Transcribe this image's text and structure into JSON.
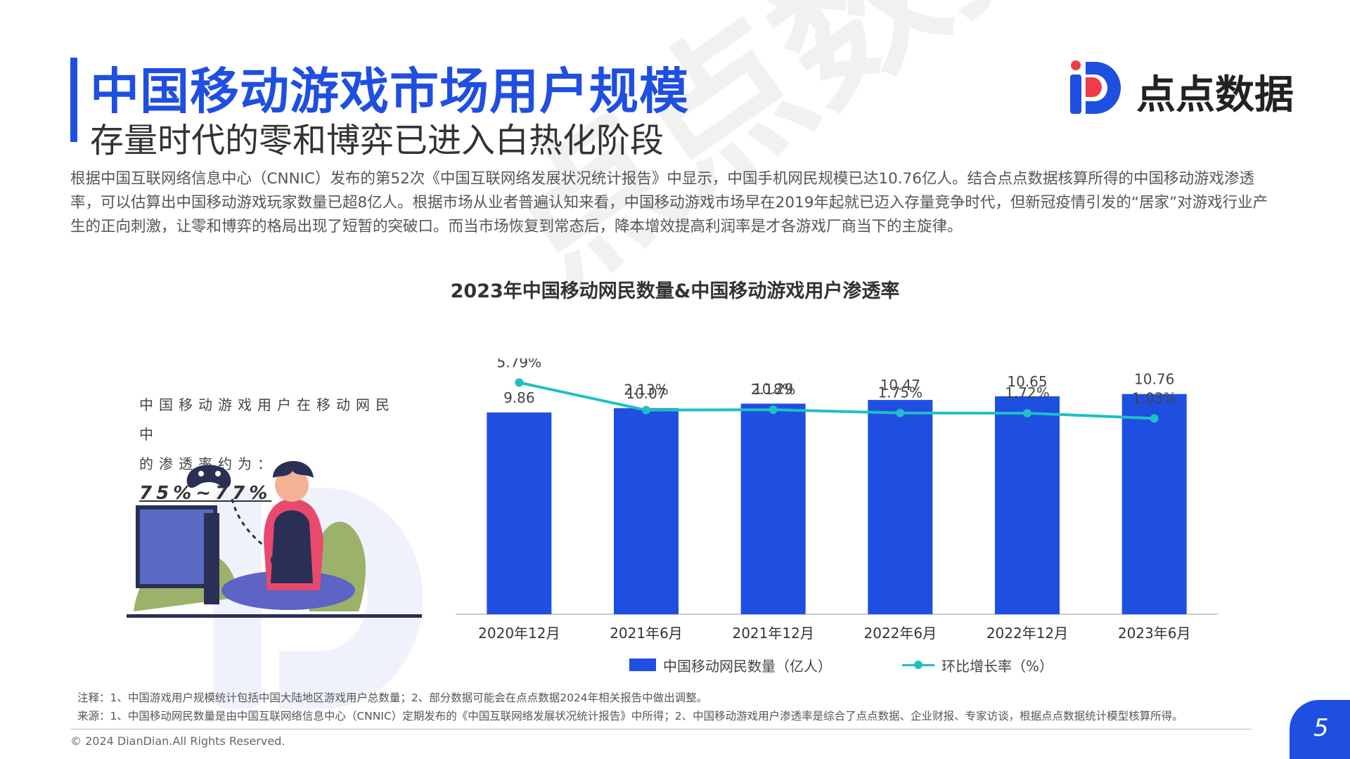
{
  "header": {
    "title": "中国移动游戏市场用户规模",
    "subtitle": "存量时代的零和博弈已进入白热化阶段",
    "logo_text": "点点数据"
  },
  "intro": {
    "paragraph": "根据中国互联网络信息中心（CNNIC）发布的第52次《中国互联网络发展状况统计报告》中显示，中国手机网民规模已达10.76亿人。结合点点数据核算所得的中国移动游戏渗透率，可以估算出中国移动游戏玩家数量已超8亿人。根据市场从业者普遍认知来看，中国移动游戏市场早在2019年起就已迈入存量竞争时代，但新冠疫情引发的“居家”对游戏行业产生的正向刺激，让零和博弈的格局出现了短暂的突破口。而当市场恢复到常态后，降本增效提高利润率是才各游戏厂商当下的主旋律。"
  },
  "watermark": {
    "text": "点点数据"
  },
  "callout": {
    "line1": "中国移动游戏用户在移动网民中",
    "line2": "的渗透率约为：",
    "highlight": "75%~77%"
  },
  "chart_data": {
    "type": "bar",
    "title": "2023年中国移动网民数量&中国移动游戏用户渗透率",
    "categories": [
      "2020年12月",
      "2021年6月",
      "2021年12月",
      "2022年6月",
      "2022年12月",
      "2023年6月"
    ],
    "series": [
      {
        "name": "中国移动网民数量（亿人）",
        "type": "bar",
        "values": [
          9.86,
          10.07,
          10.29,
          10.47,
          10.65,
          10.76
        ],
        "labels": [
          "9.86",
          "10.07",
          "10.29",
          "10.47",
          "10.65",
          "10.76"
        ]
      },
      {
        "name": "环比增长率（%）",
        "type": "line",
        "values": [
          5.79,
          2.13,
          2.18,
          1.75,
          1.72,
          1.03
        ],
        "labels": [
          "5.79%",
          "2.13%",
          "2.18%",
          "1.75%",
          "1.72%",
          "1.03%"
        ]
      }
    ],
    "ylim_bar": [
      0,
      12.5
    ],
    "ylim_line": [
      -25,
      9
    ],
    "colors": {
      "bar": "#1f4fe0",
      "line": "#1fbfc5",
      "axis": "#cccccc"
    },
    "grid": false,
    "legend_position": "bottom"
  },
  "notes": {
    "line1": "注释：1、中国游戏用户规模统计包括中国大陆地区游戏用户总数量；2、部分数据可能会在点点数据2024年相关报告中做出调整。",
    "line2": "来源：1、中国移动网民数量是由中国互联网络信息中心（CNNIC）定期发布的《中国互联网络发展状况统计报告》中所得；2、中国移动游戏用户渗透率是综合了点点数据、企业财报、专家访谈，根据点点数据统计模型核算所得。"
  },
  "footer": {
    "copyright": "© 2024 DianDian.All Rights Reserved.",
    "page": "5"
  }
}
